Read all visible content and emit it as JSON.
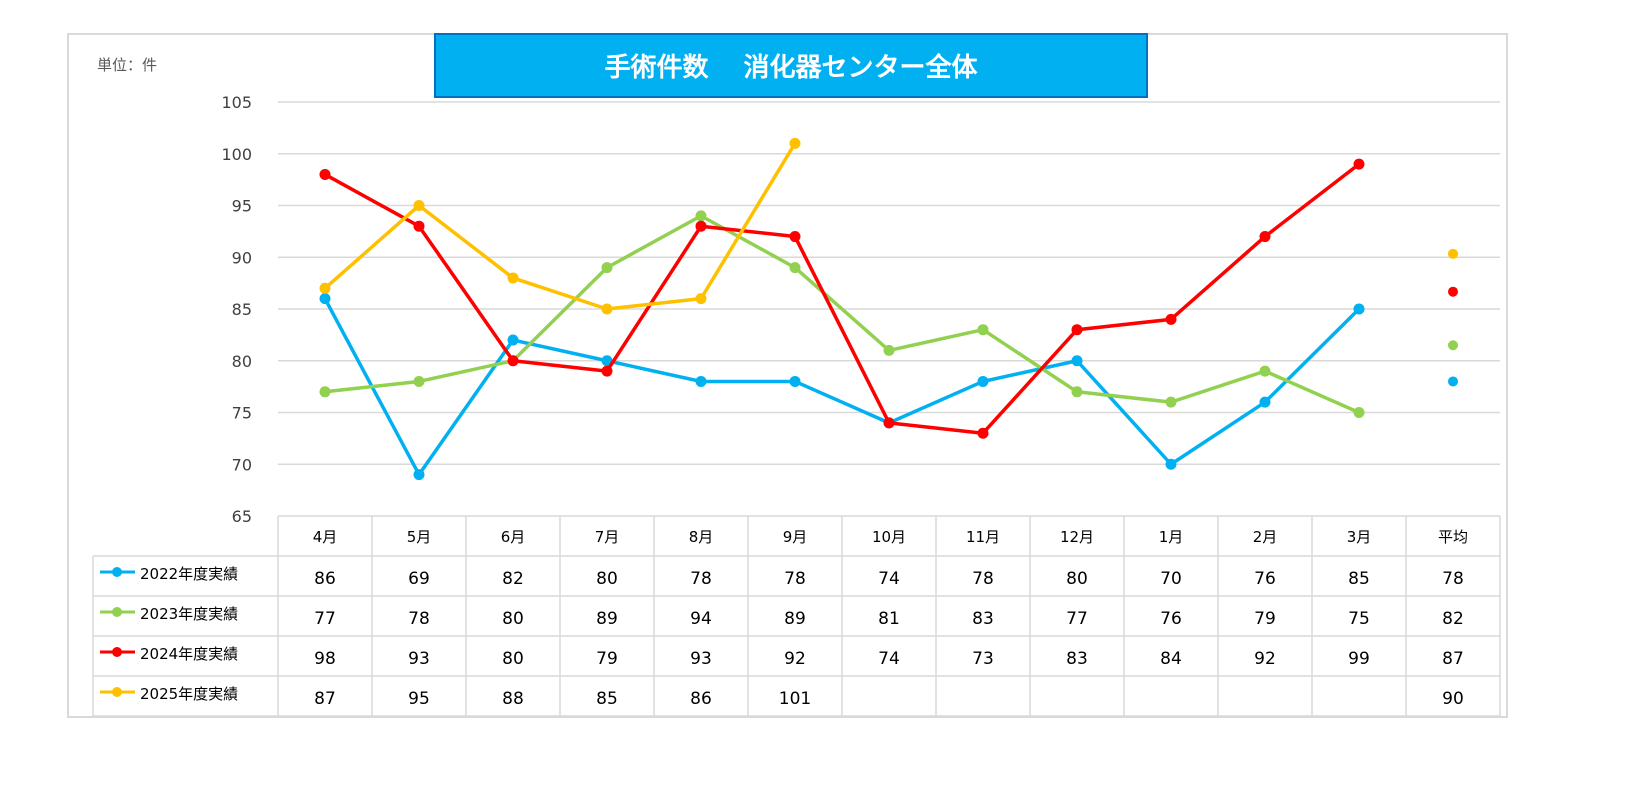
{
  "chart_data": {
    "type": "line",
    "title": "手術件数　 消化器センター全体",
    "unit_label": "単位：件",
    "ylim": [
      65,
      105
    ],
    "yticks": [
      65,
      70,
      75,
      80,
      85,
      90,
      95,
      100,
      105
    ],
    "grid": true,
    "categories": [
      "4月",
      "5月",
      "6月",
      "7月",
      "8月",
      "9月",
      "10月",
      "11月",
      "12月",
      "1月",
      "2月",
      "3月"
    ],
    "average_label": "平均",
    "series": [
      {
        "name": "2022年度実績",
        "color": "#00b0f0",
        "values": [
          86,
          69,
          82,
          80,
          78,
          78,
          74,
          78,
          80,
          70,
          76,
          85
        ],
        "average": 78,
        "average_display": "78"
      },
      {
        "name": "2023年度実績",
        "color": "#92d050",
        "values": [
          77,
          78,
          80,
          89,
          94,
          89,
          81,
          83,
          77,
          76,
          79,
          75
        ],
        "average": 81.5,
        "average_display": "82"
      },
      {
        "name": "2024年度実績",
        "color": "#ff0000",
        "values": [
          98,
          93,
          80,
          79,
          93,
          92,
          74,
          73,
          83,
          84,
          92,
          99
        ],
        "average": 86.67,
        "average_display": "87"
      },
      {
        "name": "2025年度実績",
        "color": "#ffc000",
        "values": [
          87,
          95,
          88,
          85,
          86,
          101,
          null,
          null,
          null,
          null,
          null,
          null
        ],
        "average": 90.33,
        "average_display": "90"
      }
    ]
  }
}
